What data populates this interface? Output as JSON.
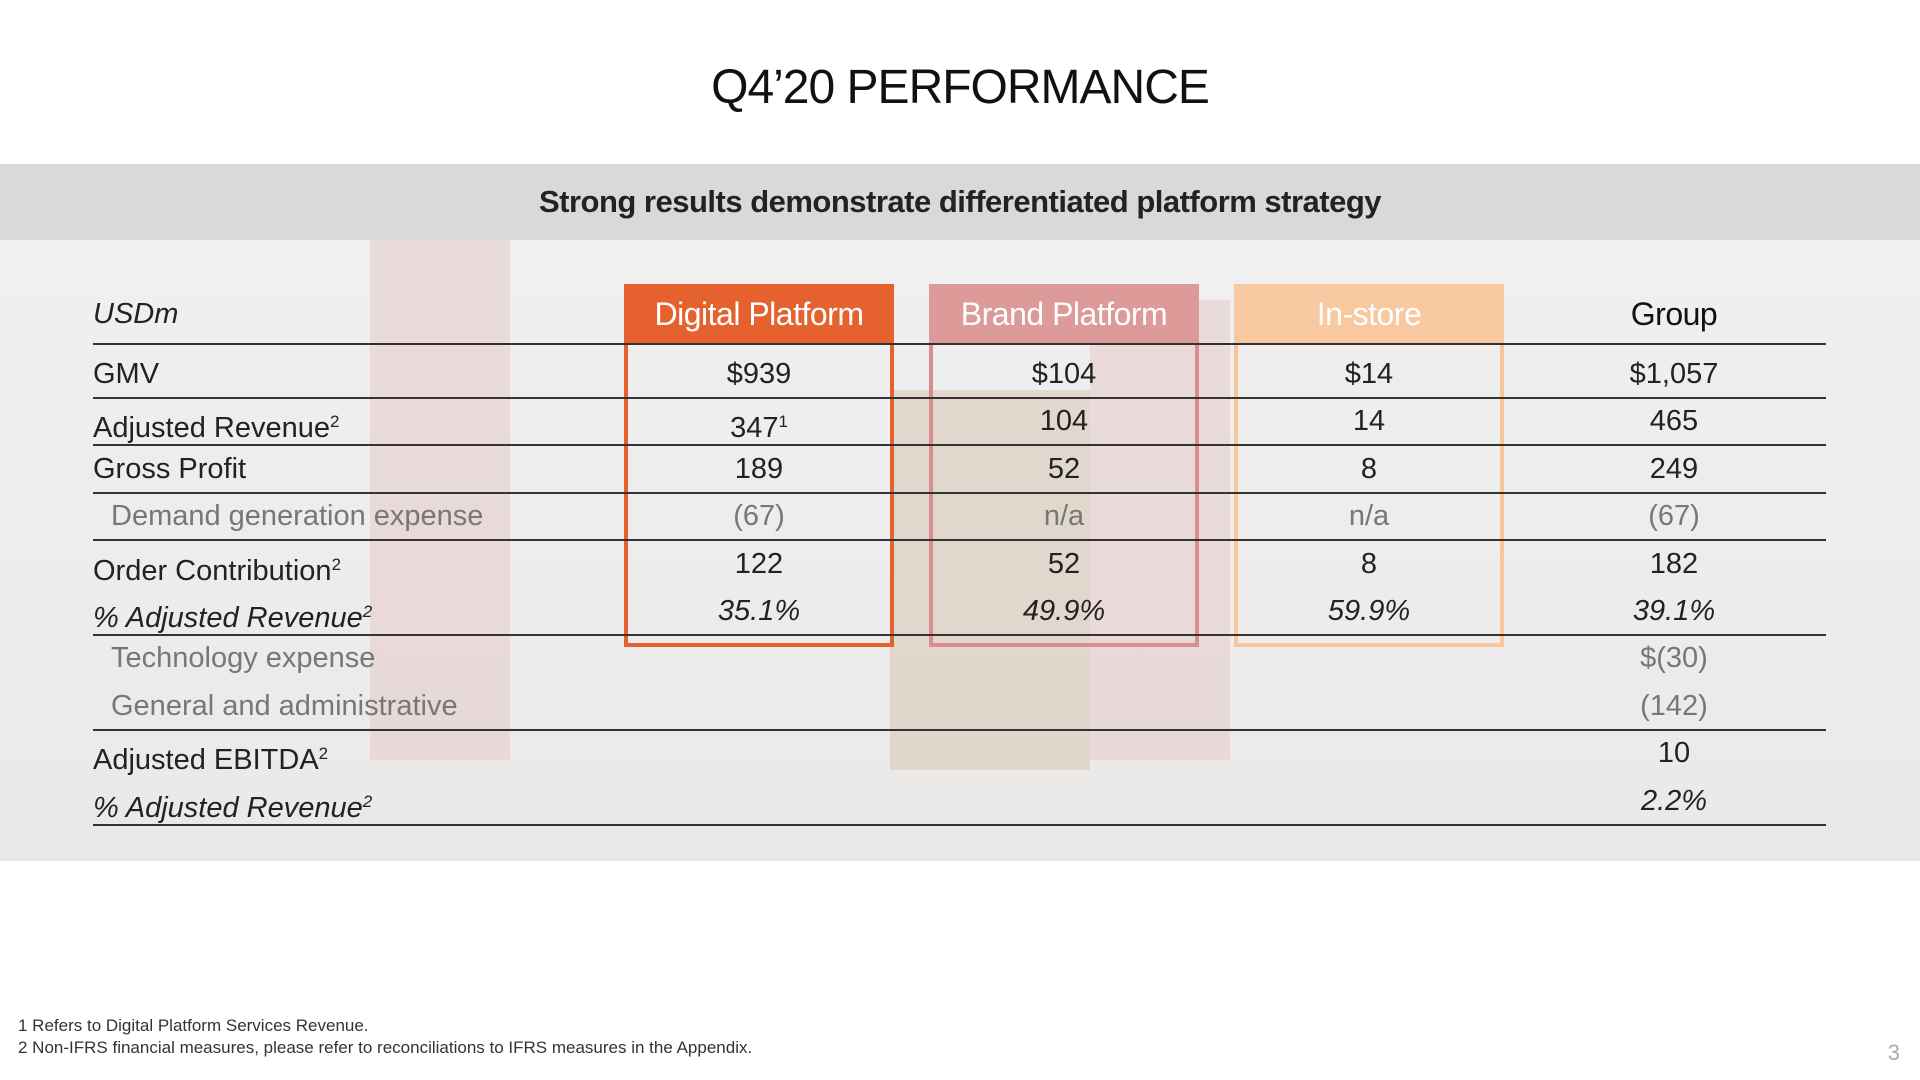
{
  "header": {
    "title": "Q4’20 PERFORMANCE",
    "subtitle": "Strong results demonstrate differentiated platform strategy"
  },
  "table": {
    "unit": "USDm",
    "columns": [
      "Digital Platform",
      "Brand Platform",
      "In-store",
      "Group"
    ],
    "rows": [
      {
        "label": "GMV",
        "cells": [
          "$939",
          "$104",
          "$14",
          "$1,057"
        ]
      },
      {
        "label": "Adjusted Revenue",
        "label_sup": "2",
        "cells": [
          "347",
          "104",
          "14",
          "465"
        ],
        "cell_sups": [
          "1"
        ]
      },
      {
        "label": "Gross Profit",
        "cells": [
          "189",
          "52",
          "8",
          "249"
        ]
      },
      {
        "label": "Demand generation expense",
        "cells": [
          "(67)",
          "n/a",
          "n/a",
          "(67)"
        ]
      },
      {
        "label": "Order Contribution",
        "label_sup": "2",
        "cells": [
          "122",
          "52",
          "8",
          "182"
        ]
      },
      {
        "label": "% Adjusted Revenue",
        "label_sup": "2",
        "cells": [
          "35.1%",
          "49.9%",
          "59.9%",
          "39.1%"
        ]
      },
      {
        "label": "Technology expense",
        "cells": [
          null,
          null,
          null,
          "$(30)"
        ]
      },
      {
        "label": "General and administrative",
        "cells": [
          null,
          null,
          null,
          "(142)"
        ]
      },
      {
        "label": "Adjusted EBITDA",
        "label_sup": "2",
        "cells": [
          null,
          null,
          null,
          "10"
        ]
      },
      {
        "label": "% Adjusted Revenue",
        "label_sup": "2",
        "cells": [
          null,
          null,
          null,
          "2.2%"
        ]
      }
    ]
  },
  "footnotes": [
    "1 Refers to Digital Platform Services Revenue.",
    "2 Non-IFRS financial measures, please refer to reconciliations to IFRS measures in the Appendix."
  ],
  "page_number": "3"
}
